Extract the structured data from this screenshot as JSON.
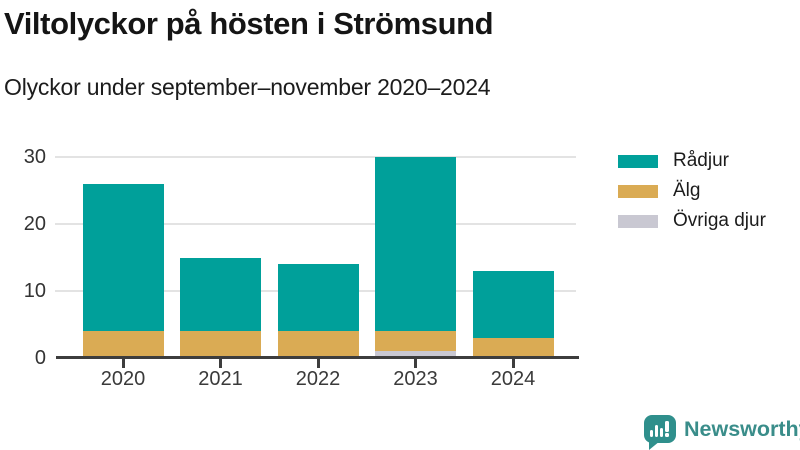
{
  "header": {
    "title": "Viltolyckor på hösten i Strömsund",
    "subtitle": "Olyckor under september–november 2020–2024"
  },
  "chart_data": {
    "type": "bar",
    "stacked": true,
    "title": "Viltolyckor på hösten i Strömsund",
    "subtitle": "Olyckor under september–november 2020–2024",
    "categories": [
      "2020",
      "2021",
      "2022",
      "2023",
      "2024"
    ],
    "series": [
      {
        "name": "Rådjur",
        "color": "#00a09a",
        "values": [
          22,
          11,
          10,
          26,
          10
        ]
      },
      {
        "name": "Älg",
        "color": "#daab54",
        "values": [
          4,
          4,
          4,
          3,
          3
        ]
      },
      {
        "name": "Övriga djur",
        "color": "#c9c8d2",
        "values": [
          0,
          0,
          0,
          1,
          0
        ]
      }
    ],
    "totals": [
      26,
      15,
      14,
      30,
      13
    ],
    "xlabel": "",
    "ylabel": "",
    "ylim": [
      0,
      30
    ],
    "yticks": [
      0,
      10,
      20,
      30
    ],
    "grid": true,
    "legend_position": "right",
    "colors": {
      "grid": "#e3e3e3",
      "axis": "#3d3d3d",
      "tick_text": "#3a3a3a"
    }
  },
  "branding": {
    "name": "Newsworthy",
    "color": "#3a8d8a"
  }
}
